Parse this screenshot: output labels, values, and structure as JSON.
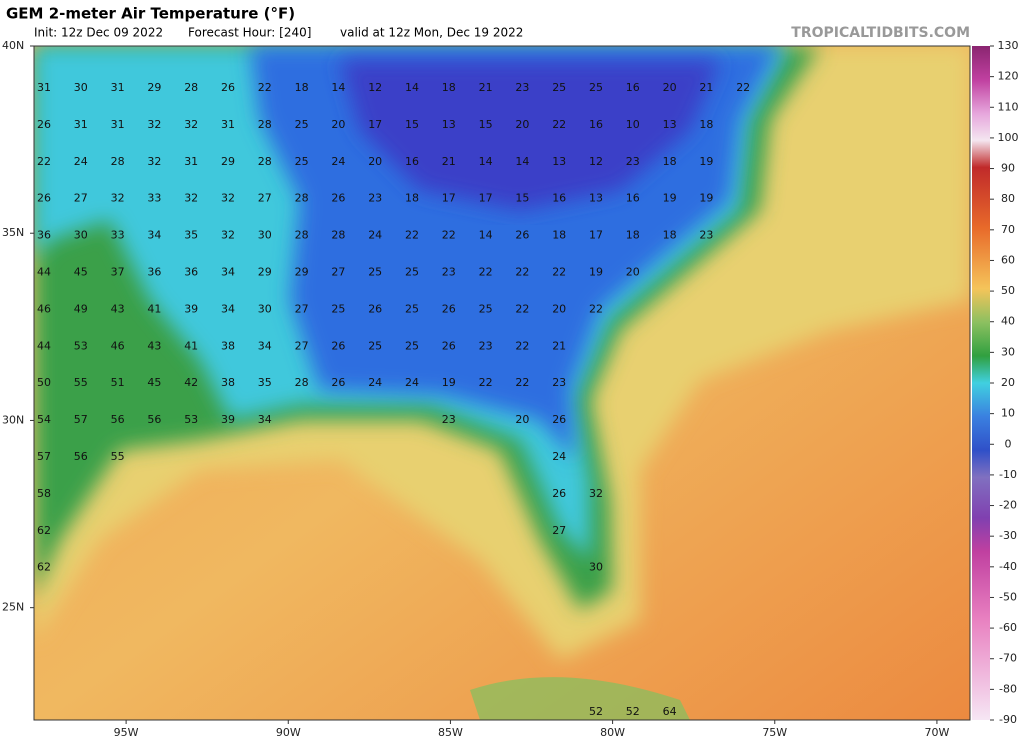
{
  "header": {
    "title": "GEM 2-meter Air Temperature (°F)",
    "init": "Init: 12z Dec 09 2022",
    "forecast_hour": "Forecast Hour: [240]",
    "valid": "valid at 12z Mon, Dec 19 2022",
    "credit": "TROPICALTIDBITS.COM"
  },
  "map": {
    "lonlim": [
      -97.84,
      -68.98
    ],
    "latlim": [
      22,
      40
    ],
    "latticks": [
      {
        "value": 40,
        "label": "40N"
      },
      {
        "value": 35,
        "label": "35N"
      },
      {
        "value": 30,
        "label": "30N"
      },
      {
        "value": 25,
        "label": "25N"
      }
    ],
    "lonticks": [
      {
        "value": -95,
        "label": "95W"
      },
      {
        "value": -90,
        "label": "90W"
      },
      {
        "value": -85,
        "label": "85W"
      },
      {
        "value": -80,
        "label": "80W"
      },
      {
        "value": -75,
        "label": "75W"
      },
      {
        "value": -70,
        "label": "70W"
      }
    ],
    "station_rows": [
      [
        31,
        30,
        31,
        29,
        28,
        26,
        22,
        18,
        14,
        12,
        14,
        18,
        21,
        23,
        25,
        25,
        16,
        20,
        21,
        22
      ],
      [
        26,
        31,
        31,
        32,
        32,
        31,
        28,
        25,
        20,
        17,
        15,
        13,
        15,
        20,
        22,
        16,
        10,
        13,
        18
      ],
      [
        22,
        24,
        28,
        32,
        31,
        29,
        28,
        25,
        24,
        20,
        16,
        21,
        14,
        14,
        13,
        12,
        23,
        18,
        19
      ],
      [
        26,
        27,
        32,
        33,
        32,
        32,
        27,
        28,
        26,
        23,
        18,
        17,
        17,
        15,
        16,
        13,
        16,
        19,
        19
      ],
      [
        36,
        30,
        33,
        34,
        35,
        32,
        30,
        28,
        28,
        24,
        22,
        22,
        14,
        26,
        18,
        17,
        18,
        18,
        23
      ],
      [
        44,
        45,
        37,
        36,
        36,
        34,
        29,
        29,
        27,
        25,
        25,
        23,
        22,
        22,
        22,
        19,
        20
      ],
      [
        46,
        49,
        43,
        41,
        39,
        34,
        30,
        27,
        25,
        26,
        25,
        26,
        25,
        22,
        20,
        22
      ],
      [
        44,
        53,
        46,
        43,
        41,
        38,
        34,
        27,
        26,
        25,
        25,
        26,
        23,
        22,
        21
      ],
      [
        50,
        55,
        51,
        45,
        42,
        38,
        35,
        28,
        26,
        24,
        24,
        19,
        22,
        22,
        23
      ],
      [
        54,
        57,
        56,
        56,
        53,
        39,
        34,
        null,
        null,
        null,
        null,
        23,
        null,
        20,
        26
      ],
      [
        57,
        56,
        55,
        null,
        null,
        null,
        null,
        null,
        null,
        null,
        null,
        null,
        null,
        null,
        24
      ],
      [
        58,
        null,
        null,
        null,
        null,
        null,
        null,
        null,
        null,
        null,
        null,
        null,
        null,
        null,
        26,
        32
      ],
      [
        62,
        null,
        null,
        null,
        null,
        null,
        null,
        null,
        null,
        null,
        null,
        null,
        null,
        null,
        27
      ],
      [
        62,
        null,
        null,
        null,
        null,
        null,
        null,
        null,
        null,
        null,
        null,
        null,
        null,
        null,
        null,
        30
      ],
      [
        null,
        null,
        null,
        null,
        null,
        null,
        null,
        null,
        null,
        null,
        null,
        null,
        null,
        null,
        null,
        52,
        52,
        64
      ]
    ]
  },
  "colorbar": {
    "lim": [
      -90,
      130
    ],
    "ticks": [
      130,
      120,
      110,
      100,
      90,
      80,
      70,
      60,
      50,
      40,
      30,
      20,
      10,
      0,
      -10,
      -20,
      -30,
      -40,
      -50,
      -60,
      -70,
      -80,
      -90
    ]
  }
}
